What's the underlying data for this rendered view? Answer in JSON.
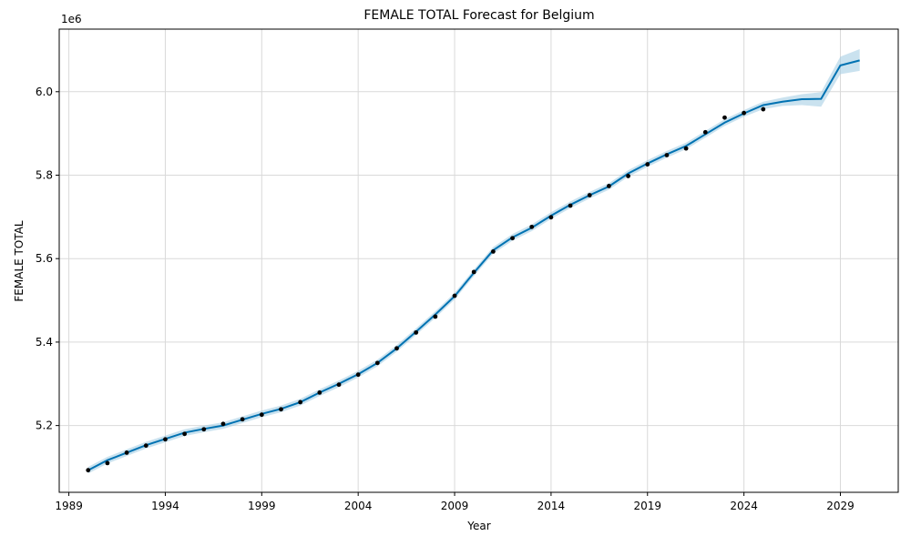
{
  "chart_data": {
    "type": "line",
    "title": "FEMALE TOTAL Forecast for Belgium",
    "xlabel": "Year",
    "ylabel": "FEMALE TOTAL",
    "y_offset_label": "1e6",
    "xlim": [
      1988.5,
      2032.0
    ],
    "ylim": [
      5040000,
      6150000
    ],
    "x_ticks": [
      1989,
      1994,
      1999,
      2004,
      2009,
      2014,
      2019,
      2024,
      2029
    ],
    "x_tick_labels": [
      "1989",
      "1994",
      "1999",
      "2004",
      "2009",
      "2014",
      "2019",
      "2024",
      "2029"
    ],
    "y_ticks": [
      5200000,
      5400000,
      5600000,
      5800000,
      6000000
    ],
    "y_tick_labels": [
      "5.2",
      "5.4",
      "5.6",
      "5.8",
      "6.0"
    ],
    "grid": true,
    "colors": {
      "forecast": "#0072B2",
      "band": "#9ecae1",
      "observed": "#000000"
    },
    "observed": {
      "x": [
        1990,
        1991,
        1992,
        1993,
        1994,
        1995,
        1996,
        1997,
        1998,
        1999,
        2000,
        2001,
        2002,
        2003,
        2004,
        2005,
        2006,
        2007,
        2008,
        2009,
        2010,
        2011,
        2012,
        2013,
        2014,
        2015,
        2016,
        2017,
        2018,
        2019,
        2020,
        2021,
        2022,
        2023,
        2024,
        2025
      ],
      "y": [
        5093000,
        5110000,
        5135000,
        5152000,
        5167000,
        5180000,
        5191000,
        5204000,
        5215000,
        5226000,
        5239000,
        5256000,
        5279000,
        5298000,
        5322000,
        5350000,
        5385000,
        5423000,
        5461000,
        5511000,
        5568000,
        5617000,
        5649000,
        5676000,
        5699000,
        5727000,
        5752000,
        5774000,
        5798000,
        5826000,
        5848000,
        5864000,
        5903000,
        5938000,
        5949000,
        5958000
      ]
    },
    "forecast": {
      "x": [
        1990,
        1991,
        1992,
        1993,
        1994,
        1995,
        1996,
        1997,
        1998,
        1999,
        2000,
        2001,
        2002,
        2003,
        2004,
        2005,
        2006,
        2007,
        2008,
        2009,
        2010,
        2011,
        2012,
        2013,
        2014,
        2015,
        2016,
        2017,
        2018,
        2019,
        2020,
        2021,
        2022,
        2023,
        2024,
        2025,
        2026,
        2027,
        2028,
        2029,
        2030
      ],
      "y": [
        5093000,
        5117000,
        5135000,
        5153000,
        5168000,
        5183000,
        5192000,
        5200000,
        5214000,
        5228000,
        5240000,
        5256000,
        5279000,
        5300000,
        5323000,
        5350000,
        5385000,
        5425000,
        5466000,
        5510000,
        5566000,
        5620000,
        5651000,
        5674000,
        5703000,
        5729000,
        5752000,
        5773000,
        5804000,
        5828000,
        5850000,
        5870000,
        5898000,
        5926000,
        5948000,
        5968000,
        5976000,
        5982000,
        5983000,
        6063000,
        6075000
      ],
      "lower": [
        5085000,
        5109000,
        5127000,
        5145000,
        5160000,
        5175000,
        5184000,
        5192000,
        5206000,
        5220000,
        5232000,
        5248000,
        5271000,
        5292000,
        5315000,
        5342000,
        5377000,
        5417000,
        5458000,
        5502000,
        5558000,
        5612000,
        5643000,
        5666000,
        5695000,
        5721000,
        5744000,
        5765000,
        5796000,
        5820000,
        5842000,
        5862000,
        5890000,
        5918000,
        5940000,
        5958000,
        5966000,
        5968000,
        5964000,
        6042000,
        6050000
      ],
      "upper": [
        5101000,
        5125000,
        5143000,
        5161000,
        5176000,
        5191000,
        5200000,
        5208000,
        5222000,
        5236000,
        5248000,
        5264000,
        5287000,
        5308000,
        5331000,
        5358000,
        5393000,
        5433000,
        5474000,
        5518000,
        5574000,
        5628000,
        5659000,
        5682000,
        5711000,
        5737000,
        5760000,
        5781000,
        5812000,
        5836000,
        5858000,
        5878000,
        5906000,
        5934000,
        5956000,
        5976000,
        5986000,
        5994000,
        5999000,
        6084000,
        6102000
      ]
    }
  }
}
